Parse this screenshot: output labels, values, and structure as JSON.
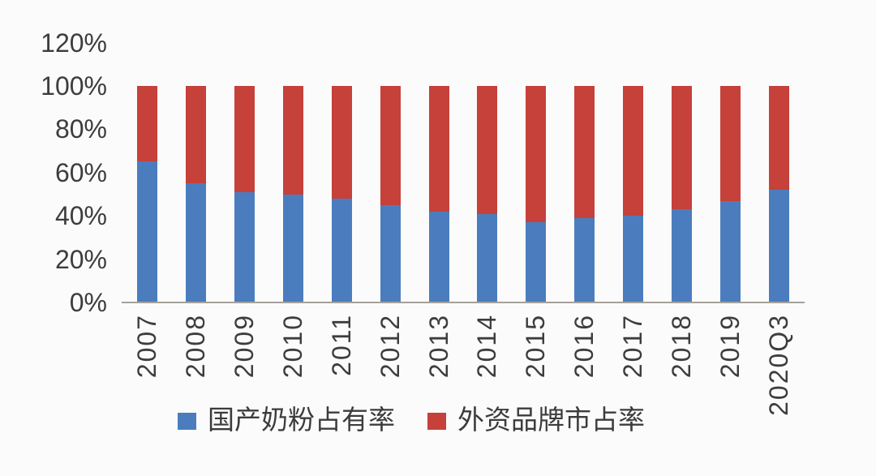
{
  "chart_data": {
    "type": "bar",
    "stacked": true,
    "title": "",
    "categories": [
      "2007",
      "2008",
      "2009",
      "2010",
      "2011",
      "2012",
      "2013",
      "2014",
      "2015",
      "2016",
      "2017",
      "2018",
      "2019",
      "2020Q3"
    ],
    "series": [
      {
        "name": "国产奶粉占有率",
        "color": "#4b7dbe",
        "values": [
          65,
          55,
          51,
          50,
          48,
          45,
          42,
          41,
          37,
          39,
          40,
          43,
          47,
          52
        ]
      },
      {
        "name": "外资品牌市占率",
        "color": "#c5413a",
        "values": [
          35,
          45,
          49,
          50,
          52,
          55,
          58,
          59,
          63,
          61,
          60,
          57,
          53,
          48
        ]
      }
    ],
    "unit": "%",
    "ylim": [
      0,
      120
    ],
    "yticks": [
      "0%",
      "20%",
      "40%",
      "60%",
      "80%",
      "100%",
      "120%"
    ],
    "x_tick_rotation": -90,
    "grid": false,
    "legend_position": "bottom"
  },
  "colors": {
    "background": "#fcfbfb",
    "axis_line": "#a5a19b",
    "text": "#3d3d3d",
    "series_blue": "#4b7dbe",
    "series_red": "#c5413a"
  }
}
